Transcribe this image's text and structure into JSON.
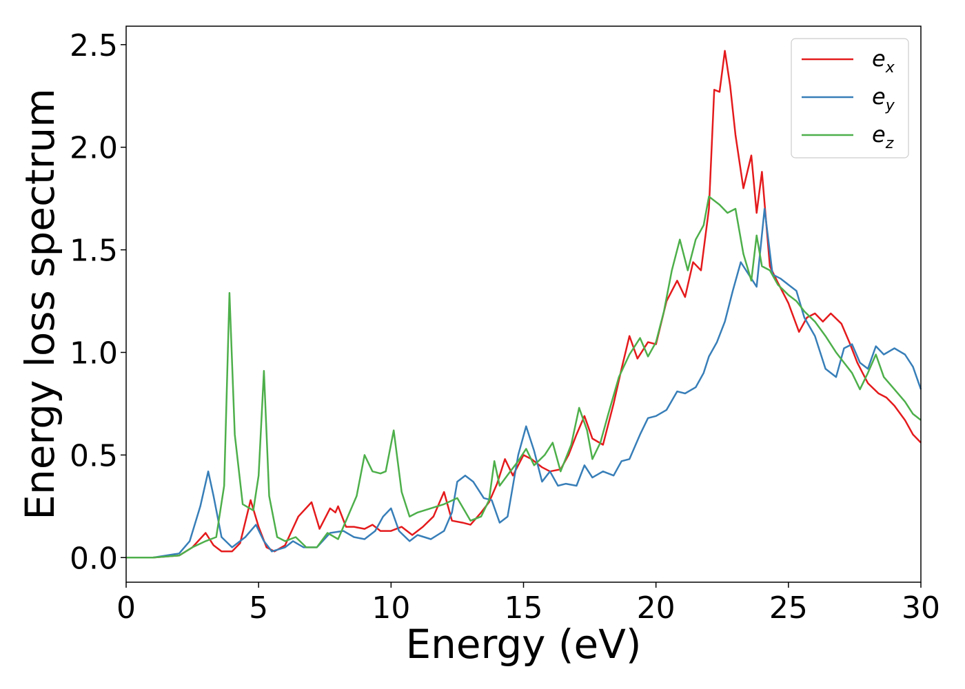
{
  "chart_data": {
    "type": "line",
    "title": "",
    "xlabel": "Energy (eV)",
    "ylabel": "Energy loss spectrum",
    "xlim": [
      0,
      30
    ],
    "ylim": [
      -0.12,
      2.59
    ],
    "xticks": [
      0,
      5,
      10,
      15,
      20,
      25,
      30
    ],
    "xtick_labels": [
      "0",
      "5",
      "10",
      "15",
      "20",
      "25",
      "30"
    ],
    "yticks": [
      0.0,
      0.5,
      1.0,
      1.5,
      2.0,
      2.5
    ],
    "ytick_labels": [
      "0.0",
      "0.5",
      "1.0",
      "1.5",
      "2.0",
      "2.5"
    ],
    "grid": false,
    "legend_position": "top-right",
    "series": [
      {
        "name": "e_x",
        "label_main": "e",
        "label_sub": "x",
        "color": "#e41a1c",
        "points": [
          [
            0,
            0.0
          ],
          [
            1,
            0.0
          ],
          [
            2,
            0.01
          ],
          [
            2.5,
            0.05
          ],
          [
            3.0,
            0.12
          ],
          [
            3.3,
            0.06
          ],
          [
            3.6,
            0.03
          ],
          [
            4.0,
            0.03
          ],
          [
            4.3,
            0.07
          ],
          [
            4.7,
            0.28
          ],
          [
            5.0,
            0.15
          ],
          [
            5.3,
            0.05
          ],
          [
            5.6,
            0.03
          ],
          [
            6.0,
            0.06
          ],
          [
            6.5,
            0.2
          ],
          [
            7.0,
            0.27
          ],
          [
            7.3,
            0.14
          ],
          [
            7.7,
            0.24
          ],
          [
            7.9,
            0.22
          ],
          [
            8.0,
            0.25
          ],
          [
            8.3,
            0.15
          ],
          [
            8.6,
            0.15
          ],
          [
            9.0,
            0.14
          ],
          [
            9.3,
            0.16
          ],
          [
            9.6,
            0.13
          ],
          [
            10.0,
            0.13
          ],
          [
            10.4,
            0.15
          ],
          [
            10.8,
            0.11
          ],
          [
            11.2,
            0.15
          ],
          [
            11.6,
            0.2
          ],
          [
            12.0,
            0.32
          ],
          [
            12.3,
            0.18
          ],
          [
            12.7,
            0.17
          ],
          [
            13.0,
            0.16
          ],
          [
            13.4,
            0.22
          ],
          [
            13.7,
            0.27
          ],
          [
            14.0,
            0.36
          ],
          [
            14.3,
            0.48
          ],
          [
            14.6,
            0.4
          ],
          [
            15.0,
            0.5
          ],
          [
            15.3,
            0.48
          ],
          [
            15.7,
            0.44
          ],
          [
            16.0,
            0.42
          ],
          [
            16.4,
            0.43
          ],
          [
            16.7,
            0.5
          ],
          [
            17.0,
            0.6
          ],
          [
            17.3,
            0.69
          ],
          [
            17.6,
            0.58
          ],
          [
            18.0,
            0.55
          ],
          [
            18.4,
            0.75
          ],
          [
            18.7,
            0.92
          ],
          [
            19.0,
            1.08
          ],
          [
            19.3,
            0.97
          ],
          [
            19.7,
            1.05
          ],
          [
            20.0,
            1.04
          ],
          [
            20.4,
            1.25
          ],
          [
            20.8,
            1.35
          ],
          [
            21.1,
            1.27
          ],
          [
            21.4,
            1.44
          ],
          [
            21.7,
            1.4
          ],
          [
            22.0,
            1.7
          ],
          [
            22.2,
            2.28
          ],
          [
            22.4,
            2.27
          ],
          [
            22.6,
            2.47
          ],
          [
            22.8,
            2.3
          ],
          [
            23.0,
            2.06
          ],
          [
            23.3,
            1.8
          ],
          [
            23.6,
            1.96
          ],
          [
            23.8,
            1.68
          ],
          [
            24.0,
            1.88
          ],
          [
            24.3,
            1.42
          ],
          [
            24.6,
            1.34
          ],
          [
            25.0,
            1.24
          ],
          [
            25.4,
            1.1
          ],
          [
            25.7,
            1.17
          ],
          [
            26.0,
            1.19
          ],
          [
            26.3,
            1.15
          ],
          [
            26.6,
            1.19
          ],
          [
            27.0,
            1.14
          ],
          [
            27.3,
            1.05
          ],
          [
            27.6,
            0.95
          ],
          [
            28.0,
            0.85
          ],
          [
            28.4,
            0.8
          ],
          [
            28.7,
            0.78
          ],
          [
            29.0,
            0.74
          ],
          [
            29.4,
            0.67
          ],
          [
            29.7,
            0.6
          ],
          [
            30.0,
            0.56
          ]
        ]
      },
      {
        "name": "e_y",
        "label_main": "e",
        "label_sub": "y",
        "color": "#377eb8",
        "points": [
          [
            0,
            0.0
          ],
          [
            1,
            0.0
          ],
          [
            2,
            0.02
          ],
          [
            2.4,
            0.08
          ],
          [
            2.8,
            0.25
          ],
          [
            3.1,
            0.42
          ],
          [
            3.3,
            0.3
          ],
          [
            3.6,
            0.1
          ],
          [
            4.0,
            0.05
          ],
          [
            4.5,
            0.1
          ],
          [
            4.9,
            0.16
          ],
          [
            5.2,
            0.08
          ],
          [
            5.5,
            0.03
          ],
          [
            6.0,
            0.05
          ],
          [
            6.3,
            0.08
          ],
          [
            6.7,
            0.05
          ],
          [
            7.2,
            0.05
          ],
          [
            7.7,
            0.12
          ],
          [
            8.2,
            0.13
          ],
          [
            8.6,
            0.1
          ],
          [
            9.0,
            0.09
          ],
          [
            9.4,
            0.13
          ],
          [
            9.7,
            0.2
          ],
          [
            10.0,
            0.24
          ],
          [
            10.3,
            0.13
          ],
          [
            10.7,
            0.08
          ],
          [
            11.0,
            0.11
          ],
          [
            11.5,
            0.09
          ],
          [
            12.0,
            0.13
          ],
          [
            12.3,
            0.22
          ],
          [
            12.5,
            0.37
          ],
          [
            12.8,
            0.4
          ],
          [
            13.1,
            0.37
          ],
          [
            13.5,
            0.29
          ],
          [
            13.8,
            0.28
          ],
          [
            14.1,
            0.17
          ],
          [
            14.4,
            0.2
          ],
          [
            14.8,
            0.5
          ],
          [
            15.1,
            0.64
          ],
          [
            15.4,
            0.52
          ],
          [
            15.7,
            0.37
          ],
          [
            16.0,
            0.42
          ],
          [
            16.3,
            0.35
          ],
          [
            16.6,
            0.36
          ],
          [
            17.0,
            0.35
          ],
          [
            17.3,
            0.45
          ],
          [
            17.6,
            0.39
          ],
          [
            18.0,
            0.42
          ],
          [
            18.4,
            0.4
          ],
          [
            18.7,
            0.47
          ],
          [
            19.0,
            0.48
          ],
          [
            19.4,
            0.6
          ],
          [
            19.7,
            0.68
          ],
          [
            20.0,
            0.69
          ],
          [
            20.4,
            0.72
          ],
          [
            20.8,
            0.81
          ],
          [
            21.1,
            0.8
          ],
          [
            21.5,
            0.83
          ],
          [
            21.8,
            0.9
          ],
          [
            22.0,
            0.98
          ],
          [
            22.3,
            1.05
          ],
          [
            22.6,
            1.15
          ],
          [
            22.9,
            1.3
          ],
          [
            23.2,
            1.44
          ],
          [
            23.5,
            1.38
          ],
          [
            23.8,
            1.32
          ],
          [
            24.1,
            1.7
          ],
          [
            24.4,
            1.38
          ],
          [
            24.7,
            1.36
          ],
          [
            25.0,
            1.33
          ],
          [
            25.3,
            1.3
          ],
          [
            25.6,
            1.17
          ],
          [
            26.0,
            1.08
          ],
          [
            26.4,
            0.92
          ],
          [
            26.8,
            0.88
          ],
          [
            27.1,
            1.02
          ],
          [
            27.4,
            1.04
          ],
          [
            27.7,
            0.95
          ],
          [
            28.0,
            0.92
          ],
          [
            28.3,
            1.03
          ],
          [
            28.6,
            0.99
          ],
          [
            29.0,
            1.02
          ],
          [
            29.4,
            0.99
          ],
          [
            29.7,
            0.93
          ],
          [
            30.0,
            0.82
          ]
        ]
      },
      {
        "name": "e_z",
        "label_main": "e",
        "label_sub": "z",
        "color": "#4daf4a",
        "points": [
          [
            0,
            0.0
          ],
          [
            1,
            0.0
          ],
          [
            2,
            0.01
          ],
          [
            2.5,
            0.05
          ],
          [
            3.0,
            0.08
          ],
          [
            3.4,
            0.1
          ],
          [
            3.7,
            0.35
          ],
          [
            3.9,
            1.29
          ],
          [
            4.1,
            0.6
          ],
          [
            4.4,
            0.26
          ],
          [
            4.8,
            0.23
          ],
          [
            5.0,
            0.4
          ],
          [
            5.2,
            0.91
          ],
          [
            5.4,
            0.3
          ],
          [
            5.7,
            0.1
          ],
          [
            6.0,
            0.08
          ],
          [
            6.4,
            0.1
          ],
          [
            6.8,
            0.05
          ],
          [
            7.2,
            0.05
          ],
          [
            7.6,
            0.12
          ],
          [
            8.0,
            0.09
          ],
          [
            8.3,
            0.18
          ],
          [
            8.7,
            0.3
          ],
          [
            9.0,
            0.5
          ],
          [
            9.3,
            0.42
          ],
          [
            9.6,
            0.41
          ],
          [
            9.8,
            0.42
          ],
          [
            10.1,
            0.62
          ],
          [
            10.4,
            0.32
          ],
          [
            10.7,
            0.2
          ],
          [
            11.0,
            0.22
          ],
          [
            11.5,
            0.24
          ],
          [
            12.0,
            0.26
          ],
          [
            12.5,
            0.29
          ],
          [
            13.0,
            0.18
          ],
          [
            13.4,
            0.2
          ],
          [
            13.7,
            0.28
          ],
          [
            13.9,
            0.47
          ],
          [
            14.1,
            0.35
          ],
          [
            14.5,
            0.42
          ],
          [
            14.8,
            0.47
          ],
          [
            15.1,
            0.53
          ],
          [
            15.4,
            0.45
          ],
          [
            15.8,
            0.5
          ],
          [
            16.1,
            0.56
          ],
          [
            16.4,
            0.42
          ],
          [
            16.8,
            0.55
          ],
          [
            17.1,
            0.73
          ],
          [
            17.4,
            0.62
          ],
          [
            17.6,
            0.48
          ],
          [
            17.9,
            0.56
          ],
          [
            18.2,
            0.7
          ],
          [
            18.6,
            0.88
          ],
          [
            19.0,
            0.99
          ],
          [
            19.4,
            1.07
          ],
          [
            19.7,
            0.98
          ],
          [
            20.0,
            1.05
          ],
          [
            20.3,
            1.2
          ],
          [
            20.6,
            1.4
          ],
          [
            20.9,
            1.55
          ],
          [
            21.2,
            1.4
          ],
          [
            21.5,
            1.55
          ],
          [
            21.8,
            1.62
          ],
          [
            22.0,
            1.76
          ],
          [
            22.4,
            1.72
          ],
          [
            22.7,
            1.68
          ],
          [
            23.0,
            1.7
          ],
          [
            23.3,
            1.48
          ],
          [
            23.6,
            1.35
          ],
          [
            23.8,
            1.57
          ],
          [
            24.0,
            1.42
          ],
          [
            24.3,
            1.4
          ],
          [
            24.6,
            1.33
          ],
          [
            25.0,
            1.28
          ],
          [
            25.3,
            1.25
          ],
          [
            25.6,
            1.2
          ],
          [
            26.0,
            1.15
          ],
          [
            26.4,
            1.08
          ],
          [
            26.8,
            1.0
          ],
          [
            27.1,
            0.95
          ],
          [
            27.4,
            0.9
          ],
          [
            27.7,
            0.82
          ],
          [
            28.0,
            0.9
          ],
          [
            28.3,
            0.99
          ],
          [
            28.6,
            0.88
          ],
          [
            29.0,
            0.82
          ],
          [
            29.4,
            0.76
          ],
          [
            29.7,
            0.7
          ],
          [
            30.0,
            0.67
          ]
        ]
      }
    ]
  }
}
